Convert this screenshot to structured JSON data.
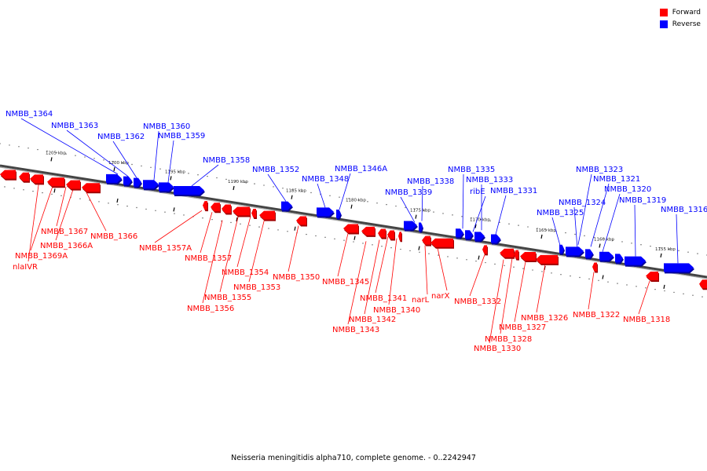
{
  "legend": {
    "forward_label": "Forward",
    "reverse_label": "Reverse",
    "forward_color": "#ff0000",
    "reverse_color": "#0000ff"
  },
  "caption": "Neisseria meningitidis alpha710, complete genome. - 0..2242947",
  "scale_labels": [
    "1205 kbp",
    "1200 kbp",
    "1195 kbp",
    "1190 kbp",
    "1185 kbp",
    "1180 kbp",
    "1175 kbp",
    "1170 kbp",
    "1165 kbp",
    "1160 kbp",
    "1155 kbp"
  ],
  "genes": [
    {
      "name": "NMBB_1364",
      "strand": "reverse"
    },
    {
      "name": "NMBB_1363",
      "strand": "reverse"
    },
    {
      "name": "NMBB_1362",
      "strand": "reverse"
    },
    {
      "name": "NMBB_1360",
      "strand": "reverse"
    },
    {
      "name": "NMBB_1359",
      "strand": "reverse"
    },
    {
      "name": "NMBB_1358",
      "strand": "reverse"
    },
    {
      "name": "NMBB_1352",
      "strand": "reverse"
    },
    {
      "name": "NMBB_1348",
      "strand": "reverse"
    },
    {
      "name": "NMBB_1346A",
      "strand": "reverse"
    },
    {
      "name": "NMBB_1338",
      "strand": "reverse"
    },
    {
      "name": "NMBB_1339",
      "strand": "reverse"
    },
    {
      "name": "NMBB_1335",
      "strand": "reverse"
    },
    {
      "name": "NMBB_1333",
      "strand": "reverse"
    },
    {
      "name": "ribE",
      "strand": "reverse"
    },
    {
      "name": "NMBB_1331",
      "strand": "reverse"
    },
    {
      "name": "NMBB_1323",
      "strand": "reverse"
    },
    {
      "name": "NMBB_1321",
      "strand": "reverse"
    },
    {
      "name": "NMBB_1324",
      "strand": "reverse"
    },
    {
      "name": "NMBB_1320",
      "strand": "reverse"
    },
    {
      "name": "NMBB_1325",
      "strand": "reverse"
    },
    {
      "name": "NMBB_1319",
      "strand": "reverse"
    },
    {
      "name": "NMBB_1316",
      "strand": "reverse"
    },
    {
      "name": "NMBB_1367",
      "strand": "forward"
    },
    {
      "name": "NMBB_1366",
      "strand": "forward"
    },
    {
      "name": "NMBB_1366A",
      "strand": "forward"
    },
    {
      "name": "NMBB_1369A",
      "strand": "forward"
    },
    {
      "name": "nlaIVR",
      "strand": "forward"
    },
    {
      "name": "NMBB_1357A",
      "strand": "forward"
    },
    {
      "name": "NMBB_1357",
      "strand": "forward"
    },
    {
      "name": "NMBB_1354",
      "strand": "forward"
    },
    {
      "name": "NMBB_1350",
      "strand": "forward"
    },
    {
      "name": "NMBB_1353",
      "strand": "forward"
    },
    {
      "name": "NMBB_1355",
      "strand": "forward"
    },
    {
      "name": "NMBB_1356",
      "strand": "forward"
    },
    {
      "name": "NMBB_1345",
      "strand": "forward"
    },
    {
      "name": "NMBB_1341",
      "strand": "forward"
    },
    {
      "name": "NMBB_1340",
      "strand": "forward"
    },
    {
      "name": "NMBB_1342",
      "strand": "forward"
    },
    {
      "name": "NMBB_1343",
      "strand": "forward"
    },
    {
      "name": "narL",
      "strand": "forward"
    },
    {
      "name": "narX",
      "strand": "forward"
    },
    {
      "name": "NMBB_1332",
      "strand": "forward"
    },
    {
      "name": "NMBB_1326",
      "strand": "forward"
    },
    {
      "name": "NMBB_1327",
      "strand": "forward"
    },
    {
      "name": "NMBB_1328",
      "strand": "forward"
    },
    {
      "name": "NMBB_1330",
      "strand": "forward"
    },
    {
      "name": "NMBB_1322",
      "strand": "forward"
    },
    {
      "name": "NMBB_1318",
      "strand": "forward"
    }
  ]
}
